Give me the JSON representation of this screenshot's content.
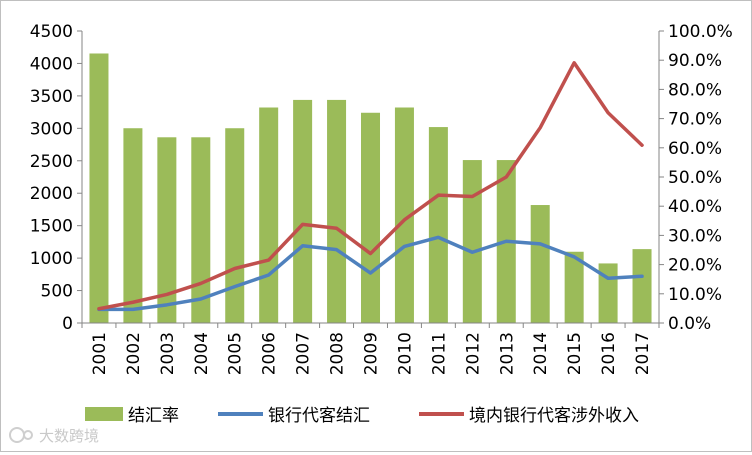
{
  "chart_data": {
    "type": "bar+line",
    "categories": [
      "2001",
      "2002",
      "2003",
      "2004",
      "2005",
      "2006",
      "2007",
      "2008",
      "2009",
      "2010",
      "2011",
      "2012",
      "2013",
      "2014",
      "2015",
      "2016",
      "2017"
    ],
    "left_axis": {
      "ylim": [
        0,
        4500
      ],
      "ticks": [
        0,
        500,
        1000,
        1500,
        2000,
        2500,
        3000,
        3500,
        4000,
        4500
      ],
      "tick_labels": [
        "0",
        "500",
        "1000",
        "1500",
        "2000",
        "2500",
        "3000",
        "3500",
        "4000",
        "4500"
      ]
    },
    "right_axis": {
      "ylim": [
        0,
        100
      ],
      "ticks": [
        0,
        10,
        20,
        30,
        40,
        50,
        60,
        70,
        80,
        90,
        100
      ],
      "tick_labels": [
        "0.0%",
        "10.0%",
        "20.0%",
        "30.0%",
        "40.0%",
        "50.0%",
        "60.0%",
        "70.0%",
        "80.0%",
        "90.0%",
        "100.0%"
      ]
    },
    "series": [
      {
        "name": "结汇率",
        "type": "bar",
        "axis": "right",
        "color": "#9bbb59",
        "values": [
          92.3,
          66.7,
          63.6,
          63.6,
          66.7,
          73.8,
          76.4,
          76.4,
          72.0,
          73.8,
          67.1,
          55.8,
          55.8,
          40.4,
          24.4,
          20.4,
          25.3
        ]
      },
      {
        "name": "银行代客结汇",
        "type": "line",
        "axis": "left",
        "color": "#4f81bd",
        "values": [
          210,
          210,
          280,
          370,
          560,
          740,
          1190,
          1130,
          770,
          1180,
          1320,
          1090,
          1260,
          1220,
          1020,
          690,
          720
        ]
      },
      {
        "name": "境内银行代客涉外收入",
        "type": "line",
        "axis": "left",
        "color": "#c0504d",
        "values": [
          220,
          320,
          440,
          610,
          840,
          970,
          1520,
          1460,
          1070,
          1590,
          1970,
          1950,
          2250,
          3010,
          4010,
          3240,
          2740
        ]
      }
    ],
    "legend": [
      "结汇率",
      "银行代客结汇",
      "境内银行代客涉外收入"
    ],
    "legend_position": "bottom"
  },
  "watermark": {
    "icon": "logo-icon",
    "text": "大数跨境"
  }
}
